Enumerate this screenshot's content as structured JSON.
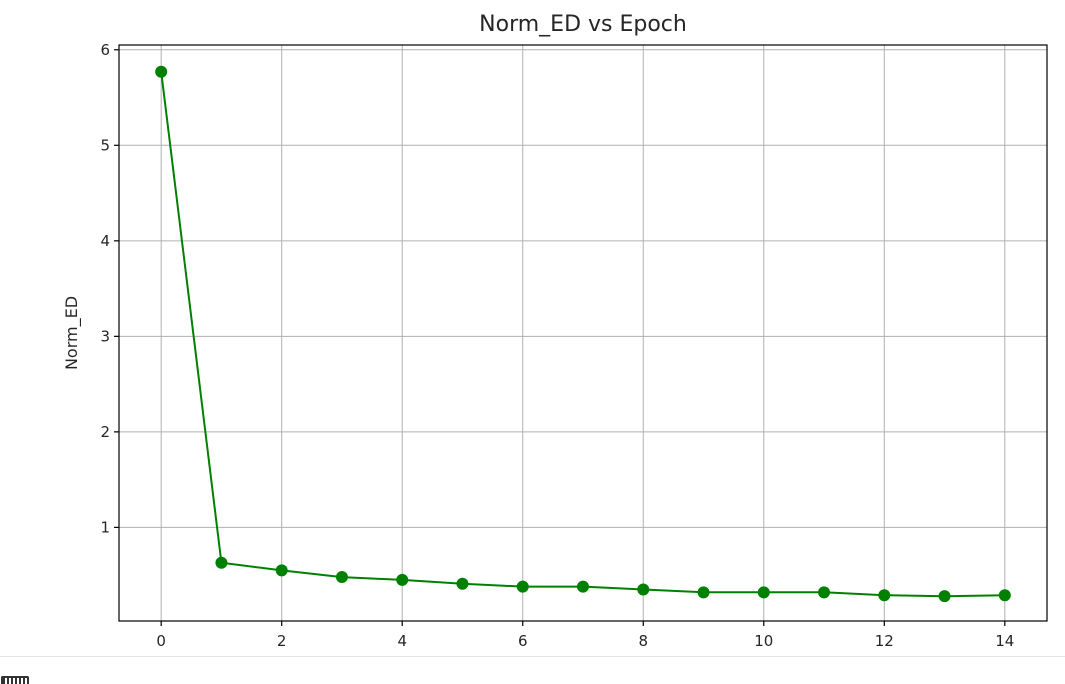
{
  "chart_data": {
    "type": "line",
    "title": "Norm_ED vs Epoch",
    "xlabel": "",
    "ylabel": "Norm_ED",
    "xlim": [
      -0.7,
      14.7
    ],
    "ylim": [
      0.02,
      6.05
    ],
    "xticks": [
      0,
      2,
      4,
      6,
      8,
      10,
      12,
      14
    ],
    "yticks": [
      1,
      2,
      3,
      4,
      5,
      6
    ],
    "grid": true,
    "series": [
      {
        "name": "",
        "color": "#008000",
        "marker": "circle",
        "x": [
          0,
          1,
          2,
          3,
          4,
          5,
          6,
          7,
          8,
          9,
          10,
          11,
          12,
          13,
          14
        ],
        "y": [
          5.77,
          0.63,
          0.55,
          0.48,
          0.45,
          0.41,
          0.38,
          0.38,
          0.35,
          0.32,
          0.32,
          0.32,
          0.29,
          0.28,
          0.29
        ]
      }
    ]
  }
}
